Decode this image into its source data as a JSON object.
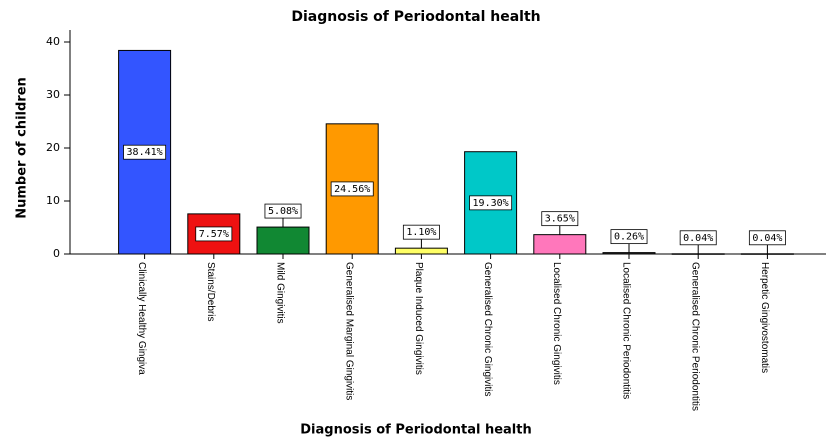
{
  "chart_data": {
    "type": "bar",
    "title": "Diagnosis of Periodontal health",
    "x_label": "Diagnosis of Periodontal health",
    "y_label": "Number of children",
    "categories": [
      "Clinically Healthy Gingiva",
      "Stains/Debris",
      "Mild Gingivitis",
      "Generalised Marginal Gingivitis",
      "Plaque Induced Gingivitis",
      "Generalised Chronic Gingivitis",
      "Localised Chronic Gingivitis",
      "Localised Chronic Periodontitis",
      "Generalised Chronic Periodontitis",
      "Herpetic Gingivostomatis"
    ],
    "values": [
      38.41,
      7.57,
      5.08,
      24.56,
      1.1,
      19.3,
      3.65,
      0.26,
      0.04,
      0.04
    ],
    "value_labels": [
      "38.41%",
      "7.57%",
      "5.08%",
      "24.56%",
      "1.10%",
      "19.30%",
      "3.65%",
      "0.26%",
      "0.04%",
      "0.04%"
    ],
    "colors": [
      "#3355ff",
      "#ee1111",
      "#118833",
      "#ff9900",
      "#ffff66",
      "#00c8c8",
      "#ff77bb",
      "#333333",
      "#333333",
      "#333333"
    ],
    "ylim": [
      0,
      40
    ],
    "yticks": [
      0,
      10,
      20,
      30,
      40
    ]
  }
}
